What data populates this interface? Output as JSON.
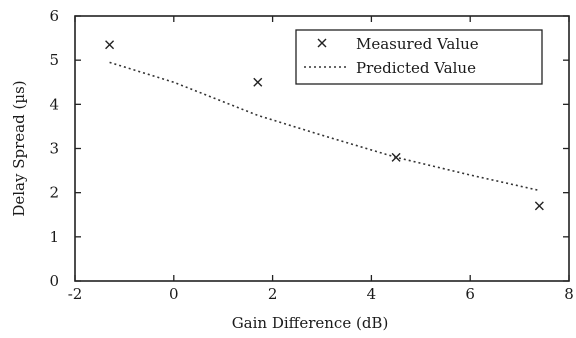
{
  "chart_data": {
    "type": "scatter",
    "xlabel": "Gain Difference (dB)",
    "ylabel": "Delay Spread (µs)",
    "xlim": [
      -2,
      8
    ],
    "ylim": [
      0,
      6
    ],
    "xticks": [
      -2,
      0,
      2,
      4,
      6,
      8
    ],
    "yticks": [
      0,
      1,
      2,
      3,
      4,
      5,
      6
    ],
    "xtick_labels": [
      "-2",
      "0",
      "2",
      "4",
      "6",
      "8"
    ],
    "ytick_labels": [
      "0",
      "1",
      "2",
      "3",
      "4",
      "5",
      "6"
    ],
    "grid": false,
    "legend_position": "top-right",
    "series": [
      {
        "name": "Measured Value",
        "style": "markers",
        "marker": "x",
        "x": [
          -1.3,
          1.7,
          4.5,
          7.4
        ],
        "y": [
          5.35,
          4.5,
          2.8,
          1.7
        ]
      },
      {
        "name": "Predicted Value",
        "style": "dotted-line",
        "x": [
          -1.3,
          0,
          1.7,
          3,
          4.5,
          6,
          7.4
        ],
        "y": [
          4.95,
          4.5,
          3.75,
          3.3,
          2.8,
          2.4,
          2.05
        ]
      }
    ]
  }
}
